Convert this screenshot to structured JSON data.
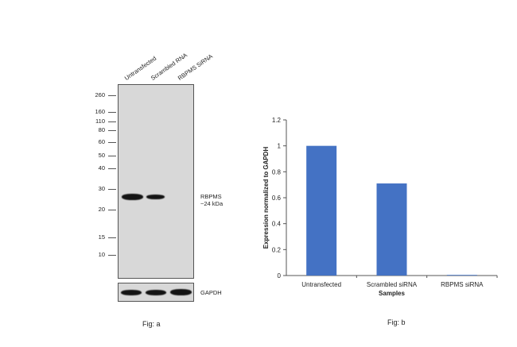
{
  "fig_a": {
    "lanes": [
      "Untransfected",
      "Scrambled RNA",
      "RBPMS SiRNA"
    ],
    "markers": [
      "260",
      "160",
      "110",
      "80",
      "60",
      "50",
      "40",
      "30",
      "20",
      "15",
      "10"
    ],
    "target_label": "RBPMS",
    "target_size": "~24 kDa",
    "loading_label": "GAPDH",
    "caption": "Fig: a"
  },
  "chart_data": {
    "type": "bar",
    "categories": [
      "Untransfected",
      "Scrambled siRNA",
      "RBPMS siRNA"
    ],
    "values": [
      1.0,
      0.71,
      0.005
    ],
    "ylim": [
      0,
      1.2
    ],
    "yticks": [
      "0",
      "0.2",
      "0.4",
      "0.6",
      "0.8",
      "1",
      "1.2"
    ],
    "xlabel": "Samples",
    "ylabel": "Expression normalized to GAPDH",
    "bar_color": "#4472c4",
    "grid": false
  },
  "fig_b": {
    "caption": "Fig: b"
  }
}
